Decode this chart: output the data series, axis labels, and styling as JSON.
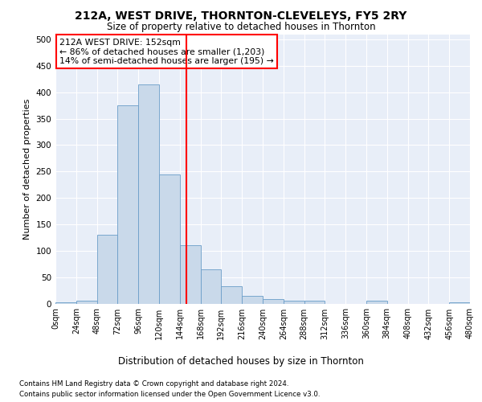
{
  "title": "212A, WEST DRIVE, THORNTON-CLEVELEYS, FY5 2RY",
  "subtitle": "Size of property relative to detached houses in Thornton",
  "xlabel": "Distribution of detached houses by size in Thornton",
  "ylabel": "Number of detached properties",
  "bin_edges": [
    0,
    24,
    48,
    72,
    96,
    120,
    144,
    168,
    192,
    216,
    240,
    264,
    288,
    312,
    336,
    360,
    384,
    408,
    432,
    456,
    480
  ],
  "bar_heights": [
    3,
    5,
    130,
    375,
    415,
    245,
    110,
    65,
    33,
    14,
    8,
    5,
    5,
    0,
    0,
    5,
    0,
    0,
    0,
    2
  ],
  "bar_color": "#c9d9ea",
  "bar_edge_color": "#6a9dc8",
  "vline_x": 152,
  "vline_color": "red",
  "annotation_text": "212A WEST DRIVE: 152sqm\n← 86% of detached houses are smaller (1,203)\n14% of semi-detached houses are larger (195) →",
  "annotation_box_color": "white",
  "annotation_box_edge": "red",
  "ylim": [
    0,
    510
  ],
  "yticks": [
    0,
    50,
    100,
    150,
    200,
    250,
    300,
    350,
    400,
    450,
    500
  ],
  "background_color": "#e8eef8",
  "footer_line1": "Contains HM Land Registry data © Crown copyright and database right 2024.",
  "footer_line2": "Contains public sector information licensed under the Open Government Licence v3.0.",
  "tick_labels": [
    "0sqm",
    "24sqm",
    "48sqm",
    "72sqm",
    "96sqm",
    "120sqm",
    "144sqm",
    "168sqm",
    "192sqm",
    "216sqm",
    "240sqm",
    "264sqm",
    "288sqm",
    "312sqm",
    "336sqm",
    "360sqm",
    "384sqm",
    "408sqm",
    "432sqm",
    "456sqm",
    "480sqm"
  ]
}
